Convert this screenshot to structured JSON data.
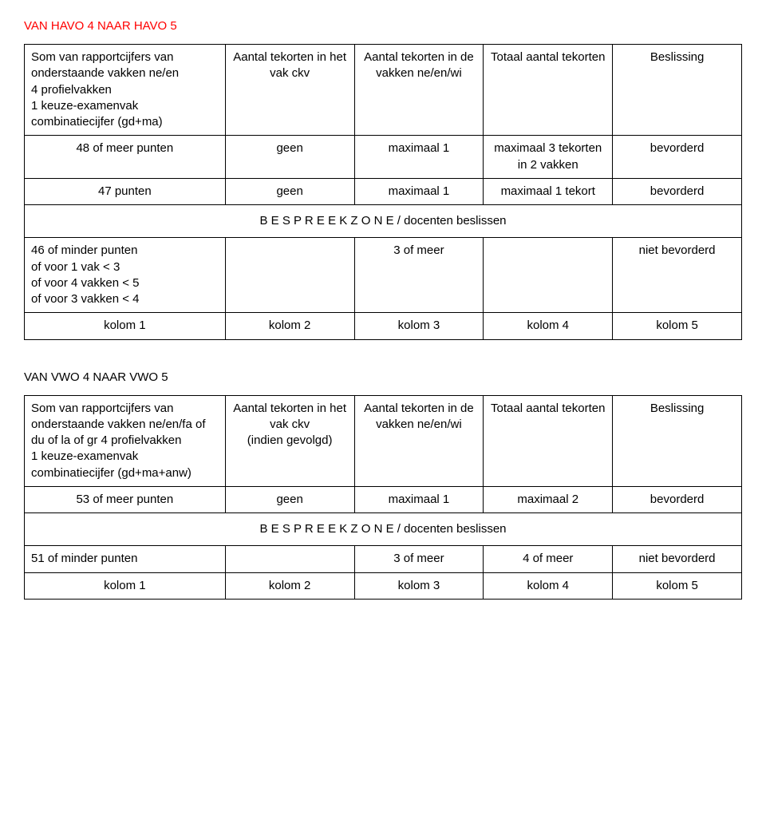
{
  "section1": {
    "title": "VAN HAVO 4 NAAR HAVO 5",
    "header": {
      "c1": "Som van rapportcijfers van onderstaande vakken ne/en\n4 profielvakken\n1 keuze-examenvak combinatiecijfer (gd+ma)",
      "c2": "Aantal tekorten in het vak ckv",
      "c3": "Aantal tekorten in de vakken ne/en/wi",
      "c4": "Totaal aantal tekorten",
      "c5": "Beslissing"
    },
    "rows": [
      {
        "c1": "48 of meer punten",
        "c2": "geen",
        "c3": "maximaal 1",
        "c4": "maximaal 3 tekorten in 2 vakken",
        "c5": "bevorderd"
      },
      {
        "c1": "47 punten",
        "c2": "geen",
        "c3": "maximaal 1",
        "c4": "maximaal 1 tekort",
        "c5": "bevorderd"
      }
    ],
    "zone": "B E S P R E E K Z O N E  / docenten beslissen",
    "row_after": {
      "c1": "46 of minder punten\nof voor 1 vak < 3\nof voor 4 vakken < 5\nof voor 3 vakken < 4",
      "c2": "",
      "c3": "3 of meer",
      "c4": "",
      "c5": "niet bevorderd"
    },
    "footer": {
      "c1": "kolom 1",
      "c2": "kolom 2",
      "c3": "kolom 3",
      "c4": "kolom 4",
      "c5": "kolom 5"
    }
  },
  "section2": {
    "title": "VAN VWO 4 NAAR VWO 5",
    "header": {
      "c1": "Som van rapportcijfers van onderstaande vakken ne/en/fa of du of la of gr 4 profielvakken\n1 keuze-examenvak combinatiecijfer (gd+ma+anw)",
      "c2": "Aantal tekorten in het vak ckv\n(indien gevolgd)",
      "c3": "Aantal tekorten in de vakken ne/en/wi",
      "c4": "Totaal aantal tekorten",
      "c5": "Beslissing"
    },
    "rows": [
      {
        "c1": "53 of meer punten",
        "c2": "geen",
        "c3": "maximaal 1",
        "c4": "maximaal 2",
        "c5": "bevorderd"
      }
    ],
    "zone": "B E S P R E E K Z O N E  / docenten beslissen",
    "row_after": {
      "c1": "51 of minder punten",
      "c2": "",
      "c3": "3 of meer",
      "c4": "4 of meer",
      "c5": "niet bevorderd"
    },
    "footer": {
      "c1": "kolom 1",
      "c2": "kolom 2",
      "c3": "kolom 3",
      "c4": "kolom 4",
      "c5": "kolom 5"
    }
  }
}
